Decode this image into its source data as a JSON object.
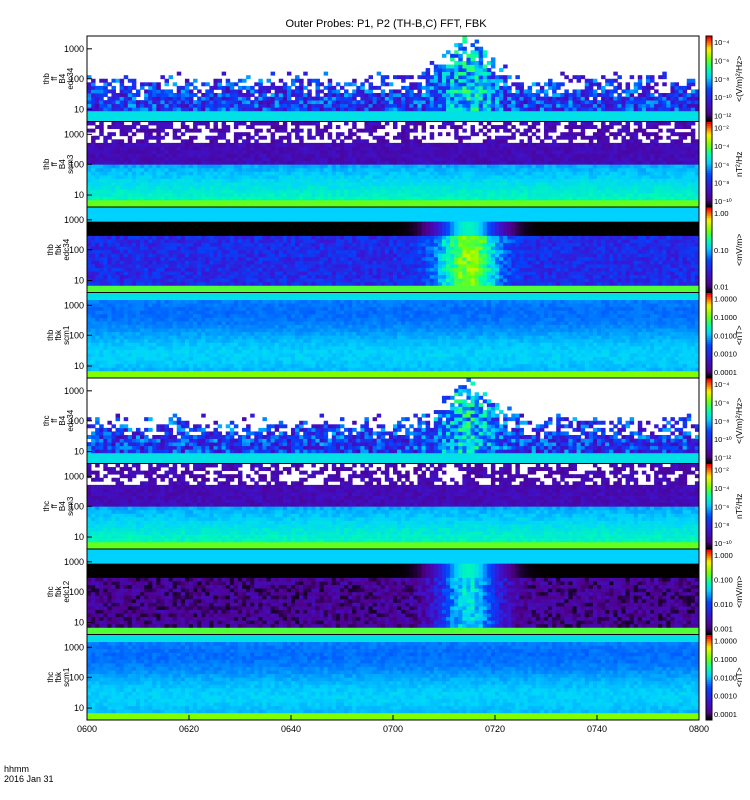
{
  "title": "Outer Probes: P1, P2 (TH-B,C) FFT, FBK",
  "footer": {
    "time_label": "hhmm",
    "date_label": "2016 Jan 31"
  },
  "chart_data": {
    "type": "heatmap",
    "x_ticks": [
      "0600",
      "0620",
      "0640",
      "0700",
      "0720",
      "0740",
      "0800"
    ],
    "panels": [
      {
        "id": "thb_ff_b4_edc34",
        "ylabel": [
          "thb",
          "ff",
          "B4",
          "edc34"
        ],
        "yticks": [
          "10",
          "100",
          "1000"
        ],
        "cbar_unit": "<(V/m)²/Hz>",
        "cbar_ticks": [
          "10⁻¹²",
          "10⁻¹⁰",
          "10⁻⁸",
          "10⁻⁶",
          "10⁻⁴"
        ],
        "kind": "edc"
      },
      {
        "id": "thb_ff_b4_scm3",
        "ylabel": [
          "thb",
          "ff",
          "B4",
          "scm3"
        ],
        "yticks": [
          "10",
          "100",
          "1000"
        ],
        "cbar_unit": "nT²/Hz",
        "cbar_ticks": [
          "10⁻¹⁰",
          "10⁻⁸",
          "10⁻⁶",
          "10⁻⁴",
          "10⁻²"
        ],
        "kind": "scm_ff"
      },
      {
        "id": "thb_fbk_edc34",
        "ylabel": [
          "thb",
          "fbk",
          "edc34"
        ],
        "yticks": [
          "10",
          "100",
          "1000"
        ],
        "cbar_unit": "<mV/m>",
        "cbar_ticks": [
          "0.01",
          "0.10",
          "1.00"
        ],
        "kind": "fbk_e"
      },
      {
        "id": "thb_fbk_scm1",
        "ylabel": [
          "thb",
          "fbk",
          "scm1"
        ],
        "yticks": [
          "10",
          "100",
          "1000"
        ],
        "cbar_unit": "<nT>",
        "cbar_ticks": [
          "0.0001",
          "0.0010",
          "0.0100",
          "0.1000",
          "1.0000"
        ],
        "kind": "fbk_b"
      },
      {
        "id": "thc_ff_b4_edc34",
        "ylabel": [
          "thc",
          "ff",
          "B4",
          "edc34"
        ],
        "yticks": [
          "10",
          "100",
          "1000"
        ],
        "cbar_unit": "<(V/m)²/Hz>",
        "cbar_ticks": [
          "10⁻¹²",
          "10⁻¹⁰",
          "10⁻⁸",
          "10⁻⁶",
          "10⁻⁴"
        ],
        "kind": "edc"
      },
      {
        "id": "thc_ff_b4_scm3",
        "ylabel": [
          "thc",
          "ff",
          "B4",
          "scm3"
        ],
        "yticks": [
          "10",
          "100",
          "1000"
        ],
        "cbar_unit": "nT²/Hz",
        "cbar_ticks": [
          "10⁻¹⁰",
          "10⁻⁸",
          "10⁻⁶",
          "10⁻⁴",
          "10⁻²"
        ],
        "kind": "scm_ff"
      },
      {
        "id": "thc_fbk_edc12",
        "ylabel": [
          "thc",
          "fbk",
          "edc12"
        ],
        "yticks": [
          "10",
          "100",
          "1000"
        ],
        "cbar_unit": "<mV/m>",
        "cbar_ticks": [
          "0.001",
          "0.010",
          "0.100",
          "1.000"
        ],
        "kind": "fbk_e"
      },
      {
        "id": "thc_fbk_scm1",
        "ylabel": [
          "thc",
          "fbk",
          "scm1"
        ],
        "yticks": [
          "10",
          "100",
          "1000"
        ],
        "cbar_unit": "<nT>",
        "cbar_ticks": [
          "0.0001",
          "0.0010",
          "0.0100",
          "0.1000",
          "1.0000"
        ],
        "kind": "fbk_b"
      }
    ]
  }
}
